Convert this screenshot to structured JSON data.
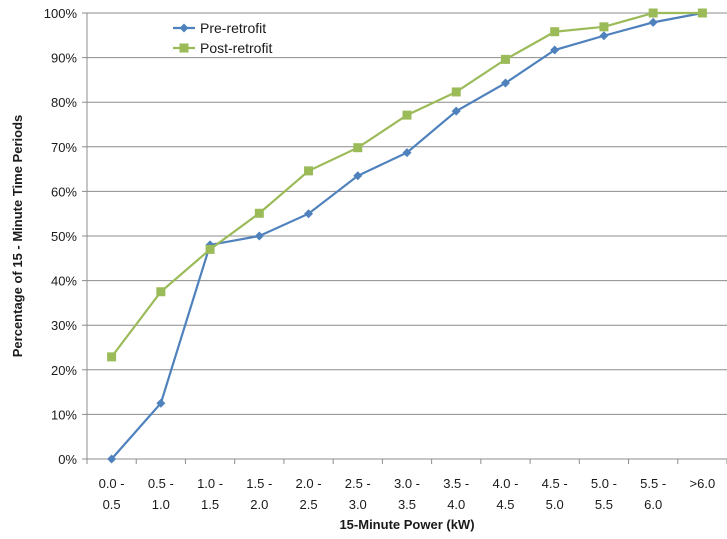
{
  "chart_data": {
    "type": "line",
    "title": "",
    "xlabel": "15-Minute Power (kW)",
    "ylabel": "Percentage of 15 - Minute Time Periods",
    "categories": [
      [
        "0.0 -",
        "0.5"
      ],
      [
        "0.5 -",
        "1.0"
      ],
      [
        "1.0 -",
        "1.5"
      ],
      [
        "1.5 -",
        "2.0"
      ],
      [
        "2.0 -",
        "2.5"
      ],
      [
        "2.5 -",
        "3.0"
      ],
      [
        "3.0 -",
        "3.5"
      ],
      [
        "3.5 -",
        "4.0"
      ],
      [
        "4.0 -",
        "4.5"
      ],
      [
        "4.5 -",
        "5.0"
      ],
      [
        "5.0 -",
        "5.5"
      ],
      [
        "5.5 -",
        "6.0"
      ],
      [
        ">6.0"
      ]
    ],
    "ylim": [
      0,
      100
    ],
    "yticks": [
      "0%",
      "10%",
      "20%",
      "30%",
      "40%",
      "50%",
      "60%",
      "70%",
      "80%",
      "90%",
      "100%"
    ],
    "grid": true,
    "legend_position": "top-left",
    "series": [
      {
        "name": "Pre-retrofit",
        "color": "#4f81bd",
        "marker": "diamond",
        "values": [
          0,
          12.5,
          48,
          50,
          55,
          63.5,
          68.7,
          78,
          84.3,
          91.7,
          94.9,
          97.9,
          100
        ]
      },
      {
        "name": "Post-retrofit",
        "color": "#9bbb59",
        "marker": "square",
        "values": [
          22.9,
          37.5,
          47,
          55.1,
          64.6,
          69.8,
          77.1,
          82.3,
          89.6,
          95.8,
          96.9,
          100,
          100
        ]
      }
    ]
  }
}
